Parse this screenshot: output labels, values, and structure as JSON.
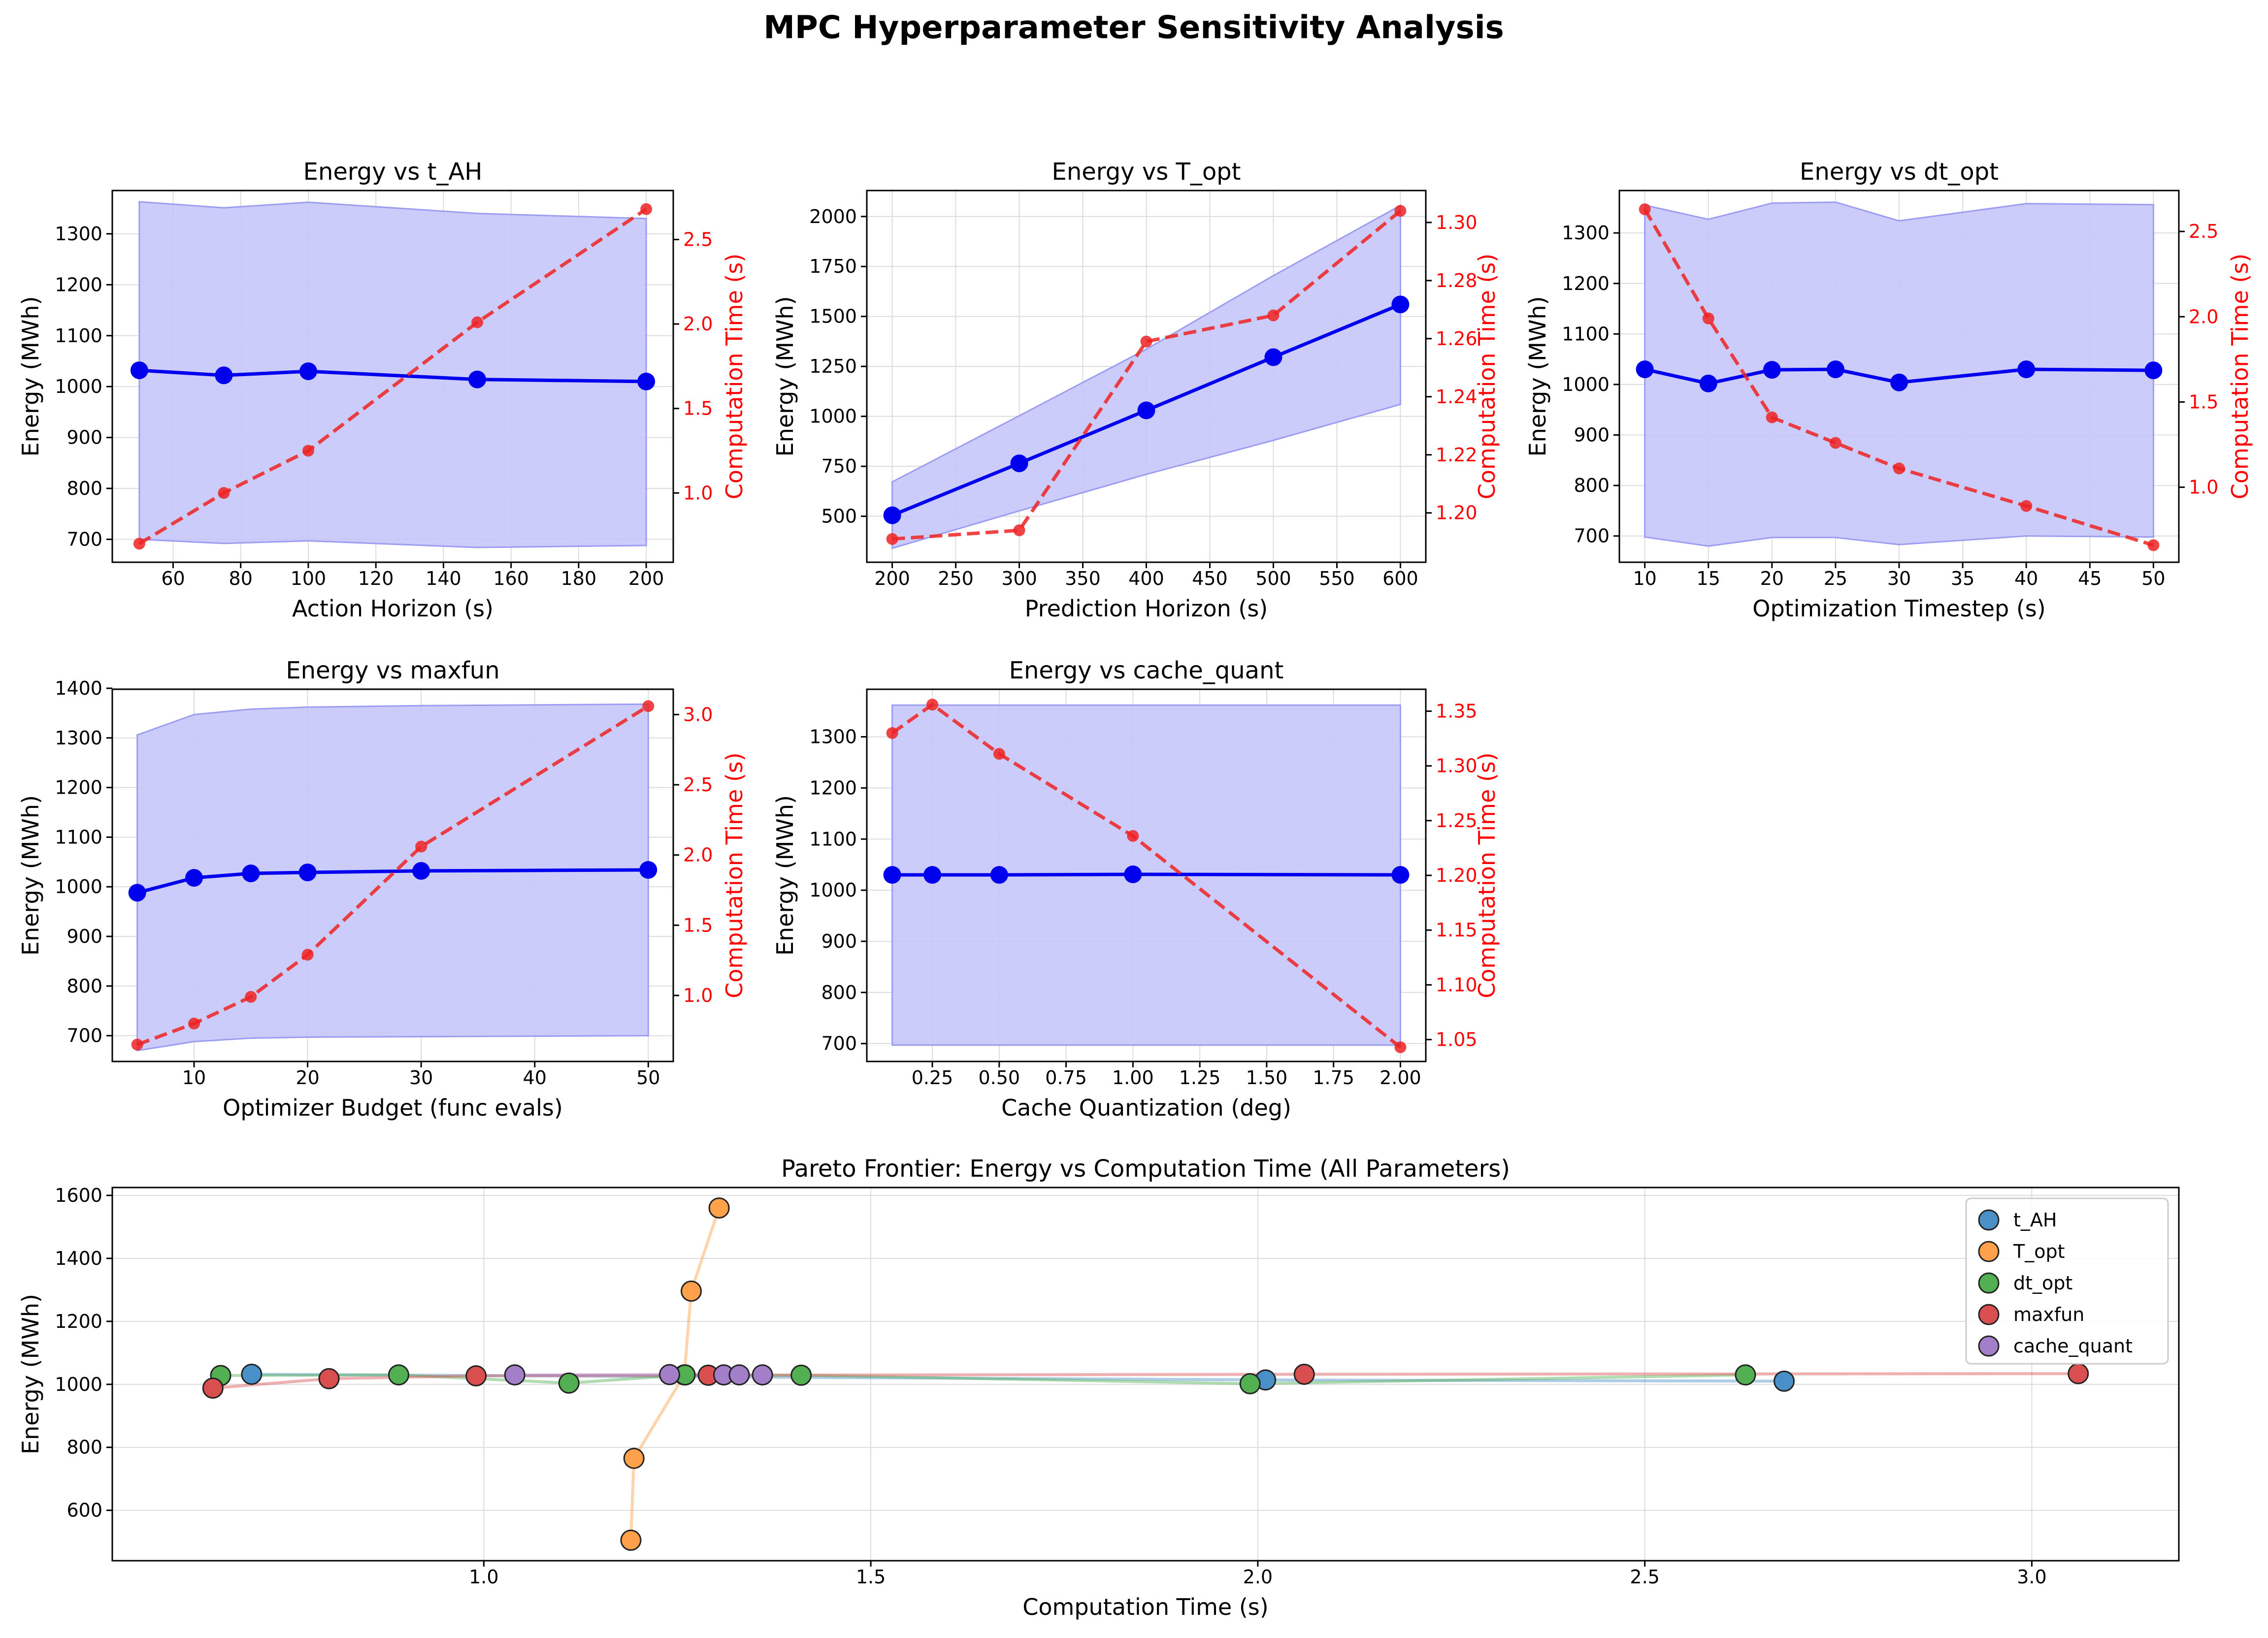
{
  "suptitle": "MPC Hyperparameter Sensitivity Analysis",
  "colors": {
    "energy": "#0000ee",
    "band": "#c6c6fa",
    "band_edge": "#9c9cf2",
    "time": "#ee2222",
    "time_axis": "#ff0000",
    "grid": "#dcdcdc",
    "t_AH": "#4a90c8",
    "T_opt": "#ffa04a",
    "dt_opt": "#52b052",
    "maxfun": "#d94f4f",
    "cache_quant": "#a37fc9"
  },
  "chart_data": [
    {
      "type": "line",
      "title": "Energy vs t_AH",
      "xlabel": "Action Horizon (s)",
      "ylabel": "Energy (MWh)",
      "y2label": "Computation Time (s)",
      "x": [
        50,
        75,
        100,
        150,
        200
      ],
      "energy": [
        1032,
        1022,
        1030,
        1014,
        1010
      ],
      "energy_upper": [
        1363,
        1351,
        1362,
        1340,
        1330
      ],
      "energy_lower": [
        700,
        692,
        697,
        684,
        688
      ],
      "comp_time": [
        0.7,
        1.0,
        1.25,
        2.01,
        2.68
      ],
      "xlim": [
        42,
        208
      ],
      "ylim": [
        655,
        1385
      ],
      "y2lim": [
        0.59,
        2.79
      ],
      "xticks": [
        60,
        80,
        100,
        120,
        140,
        160,
        180,
        200
      ],
      "yticks": [
        700,
        800,
        900,
        1000,
        1100,
        1200,
        1300
      ],
      "y2ticks": [
        1.0,
        1.5,
        2.0,
        2.5
      ],
      "y2tickfmt": 1,
      "grid": true
    },
    {
      "type": "line",
      "title": "Energy vs T_opt",
      "xlabel": "Prediction Horizon (s)",
      "ylabel": "Energy (MWh)",
      "y2label": "Computation Time (s)",
      "x": [
        200,
        300,
        400,
        500,
        600
      ],
      "energy": [
        505,
        765,
        1030,
        1296,
        1560
      ],
      "energy_upper": [
        672,
        1003,
        1336,
        1704,
        2055
      ],
      "energy_lower": [
        340,
        527,
        710,
        880,
        1060
      ],
      "comp_time": [
        1.191,
        1.194,
        1.259,
        1.268,
        1.304
      ],
      "xlim": [
        180,
        620
      ],
      "ylim": [
        270,
        2130
      ],
      "y2lim": [
        1.183,
        1.311
      ],
      "xticks": [
        200,
        250,
        300,
        350,
        400,
        450,
        500,
        550,
        600
      ],
      "yticks": [
        500,
        750,
        1000,
        1250,
        1500,
        1750,
        2000
      ],
      "y2ticks": [
        1.2,
        1.22,
        1.24,
        1.26,
        1.28,
        1.3
      ],
      "y2tickfmt": 2,
      "grid": true
    },
    {
      "type": "line",
      "title": "Energy vs dt_opt",
      "xlabel": "Optimization Timestep (s)",
      "ylabel": "Energy (MWh)",
      "y2label": "Computation Time (s)",
      "x": [
        10,
        15,
        20,
        25,
        30,
        40,
        50
      ],
      "energy": [
        1030,
        1002,
        1029,
        1030,
        1004,
        1030,
        1028
      ],
      "energy_upper": [
        1355,
        1327,
        1359,
        1361,
        1324,
        1358,
        1356
      ],
      "energy_lower": [
        698,
        680,
        697,
        697,
        683,
        700,
        698
      ],
      "comp_time": [
        2.63,
        1.99,
        1.41,
        1.26,
        1.11,
        0.89,
        0.66
      ],
      "xlim": [
        8,
        52
      ],
      "ylim": [
        648,
        1384
      ],
      "y2lim": [
        0.56,
        2.74
      ],
      "xticks": [
        10,
        15,
        20,
        25,
        30,
        35,
        40,
        45,
        50
      ],
      "yticks": [
        700,
        800,
        900,
        1000,
        1100,
        1200,
        1300
      ],
      "y2ticks": [
        1.0,
        1.5,
        2.0,
        2.5
      ],
      "y2tickfmt": 1,
      "grid": true
    },
    {
      "type": "line",
      "title": "Energy vs maxfun",
      "xlabel": "Optimizer Budget (func evals)",
      "ylabel": "Energy (MWh)",
      "y2label": "Computation Time (s)",
      "x": [
        5,
        10,
        15,
        20,
        30,
        50
      ],
      "energy": [
        988,
        1018,
        1027,
        1029,
        1032,
        1034
      ],
      "energy_upper": [
        1306,
        1347,
        1358,
        1362,
        1365,
        1368
      ],
      "energy_lower": [
        670,
        688,
        695,
        697,
        698,
        700
      ],
      "comp_time": [
        0.65,
        0.8,
        0.99,
        1.29,
        2.06,
        3.06
      ],
      "xlim": [
        2.8,
        52.2
      ],
      "ylim": [
        648,
        1398
      ],
      "y2lim": [
        0.53,
        3.18
      ],
      "xticks": [
        10,
        20,
        30,
        40,
        50
      ],
      "yticks": [
        700,
        800,
        900,
        1000,
        1100,
        1200,
        1300,
        1400
      ],
      "y2ticks": [
        1.0,
        1.5,
        2.0,
        2.5,
        3.0
      ],
      "y2tickfmt": 1,
      "grid": true
    },
    {
      "type": "line",
      "title": "Energy vs cache_quant",
      "xlabel": "Cache Quantization (deg)",
      "ylabel": "Energy (MWh)",
      "y2label": "Computation Time (s)",
      "x": [
        0.1,
        0.25,
        0.5,
        1.0,
        2.0
      ],
      "energy": [
        1030,
        1030,
        1030,
        1031,
        1030
      ],
      "energy_upper": [
        1362,
        1362,
        1362,
        1362,
        1362
      ],
      "energy_lower": [
        697,
        697,
        697,
        697,
        697
      ],
      "comp_time": [
        1.33,
        1.356,
        1.311,
        1.236,
        1.043
      ],
      "xlim": [
        0.005,
        2.095
      ],
      "ylim": [
        665,
        1393
      ],
      "y2lim": [
        1.03,
        1.37
      ],
      "xticks": [
        0.25,
        0.5,
        0.75,
        1.0,
        1.25,
        1.5,
        1.75,
        2.0
      ],
      "yticks": [
        700,
        800,
        900,
        1000,
        1100,
        1200,
        1300
      ],
      "y2ticks": [
        1.05,
        1.1,
        1.15,
        1.2,
        1.25,
        1.3,
        1.35
      ],
      "y2tickfmt": 2,
      "xtickfmt": 2,
      "grid": true
    },
    {
      "type": "scatter",
      "title": "Pareto Frontier: Energy vs Computation Time (All Parameters)",
      "xlabel": "Computation Time (s)",
      "ylabel": "Energy (MWh)",
      "xlim": [
        0.52,
        3.19
      ],
      "ylim": [
        440,
        1625
      ],
      "xticks": [
        1.0,
        1.5,
        2.0,
        2.5,
        3.0
      ],
      "yticks": [
        600,
        800,
        1000,
        1200,
        1400,
        1600
      ],
      "legend": "top-right",
      "grid": true,
      "series": [
        {
          "name": "t_AH",
          "x": [
            0.7,
            2.01,
            2.68
          ],
          "y": [
            1032,
            1014,
            1010
          ]
        },
        {
          "name": "T_opt",
          "x": [
            1.19,
            1.194,
            1.259,
            1.268,
            1.304
          ],
          "y": [
            505,
            765,
            1030,
            1296,
            1560
          ]
        },
        {
          "name": "dt_opt",
          "x": [
            0.66,
            0.89,
            1.11,
            1.26,
            1.41,
            1.99,
            2.63
          ],
          "y": [
            1028,
            1030,
            1004,
            1030,
            1029,
            1002,
            1030
          ]
        },
        {
          "name": "maxfun",
          "x": [
            0.65,
            0.8,
            0.99,
            1.29,
            2.06,
            3.06
          ],
          "y": [
            988,
            1018,
            1027,
            1029,
            1032,
            1034
          ]
        },
        {
          "name": "cache_quant",
          "x": [
            1.04,
            1.24,
            1.31,
            1.33,
            1.36
          ],
          "y": [
            1030,
            1031,
            1030,
            1030,
            1030
          ]
        }
      ]
    }
  ]
}
